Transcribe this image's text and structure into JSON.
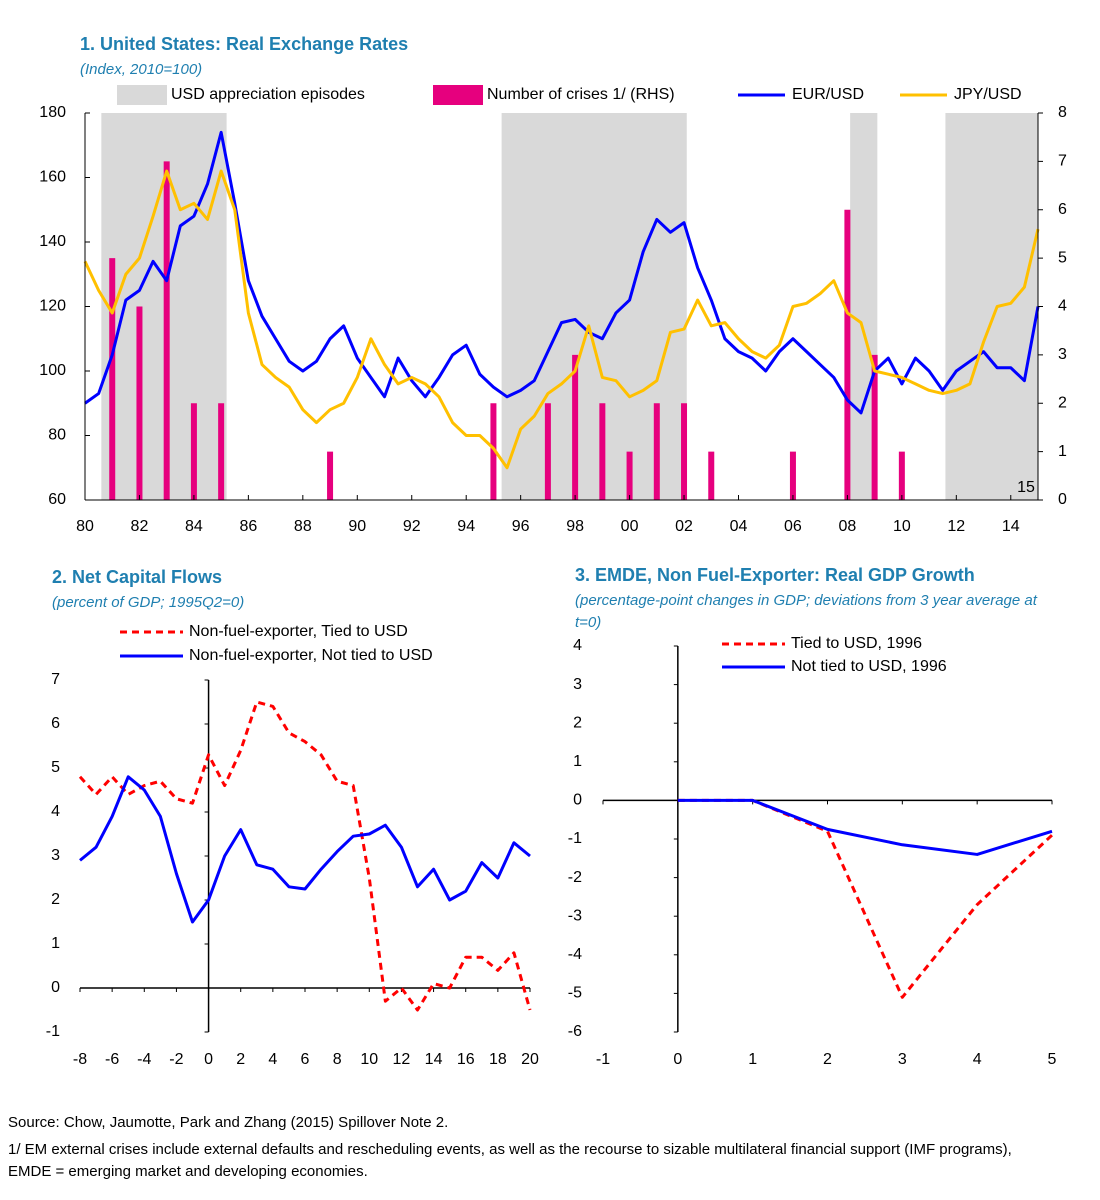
{
  "chart_data": [
    {
      "type": "line",
      "title": "1. United States: Real Exchange Rates",
      "subtitle": "(Index, 2010=100)",
      "x": [
        1980,
        1980.5,
        1981,
        1981.5,
        1982,
        1982.5,
        1983,
        1983.5,
        1984,
        1984.5,
        1985,
        1985.5,
        1986,
        1986.5,
        1987,
        1987.5,
        1988,
        1988.5,
        1989,
        1989.5,
        1990,
        1990.5,
        1991,
        1991.5,
        1992,
        1992.5,
        1993,
        1993.5,
        1994,
        1994.5,
        1995,
        1995.5,
        1996,
        1996.5,
        1997,
        1997.5,
        1998,
        1998.5,
        1999,
        1999.5,
        2000,
        2000.5,
        2001,
        2001.5,
        2002,
        2002.5,
        2003,
        2003.5,
        2004,
        2004.5,
        2005,
        2005.5,
        2006,
        2006.5,
        2007,
        2007.5,
        2008,
        2008.5,
        2009,
        2009.5,
        2010,
        2010.5,
        2011,
        2011.5,
        2012,
        2012.5,
        2013,
        2013.5,
        2014,
        2014.5,
        2015
      ],
      "shaded": {
        "name": "USD appreciation episodes",
        "color": "#d9d9d9",
        "ranges": [
          [
            1980.6,
            1985.2
          ],
          [
            1995.3,
            2002.1
          ],
          [
            2008.1,
            2009.1
          ],
          [
            2011.6,
            2015
          ]
        ]
      },
      "bars": {
        "name": "Number of crises 1/ (RHS)",
        "color": "#e6007e",
        "axis": "y2",
        "x": [
          1981,
          1982,
          1983,
          1984,
          1985,
          1989,
          1995,
          1997,
          1998,
          1999,
          2000,
          2001,
          2002,
          2003,
          2006,
          2008,
          2009,
          2010
        ],
        "values": [
          5,
          4,
          7,
          2,
          2,
          1,
          2,
          2,
          3,
          2,
          1,
          2,
          2,
          1,
          1,
          6,
          3,
          1
        ]
      },
      "series": [
        {
          "name": "EUR/USD",
          "color": "#0000ff",
          "values": [
            90,
            93,
            105,
            122,
            125,
            134,
            128,
            145,
            148,
            158,
            174,
            152,
            128,
            117,
            110,
            103,
            100,
            103,
            110,
            114,
            104,
            98,
            92,
            104,
            97,
            92,
            98,
            105,
            108,
            99,
            95,
            92,
            94,
            97,
            106,
            115,
            116,
            112,
            110,
            118,
            122,
            137,
            147,
            143,
            146,
            132,
            122,
            110,
            106,
            104,
            100,
            106,
            110,
            106,
            102,
            98,
            91,
            87,
            100,
            104,
            96,
            104,
            100,
            94,
            100,
            103,
            106,
            101,
            101,
            97,
            120
          ]
        },
        {
          "name": "JPY/USD",
          "color": "#ffc000",
          "values": [
            134,
            125,
            118,
            130,
            135,
            148,
            162,
            150,
            152,
            147,
            162,
            150,
            118,
            102,
            98,
            95,
            88,
            84,
            88,
            90,
            98,
            110,
            102,
            96,
            98,
            96,
            92,
            84,
            80,
            80,
            76,
            70,
            82,
            86,
            93,
            96,
            100,
            114,
            98,
            97,
            92,
            94,
            97,
            112,
            113,
            122,
            114,
            115,
            110,
            106,
            104,
            108,
            120,
            121,
            124,
            128,
            118,
            115,
            100,
            99,
            98,
            96,
            94,
            93,
            94,
            96,
            109,
            120,
            121,
            126,
            144
          ]
        }
      ],
      "xlim": [
        1980,
        2015
      ],
      "xticks": [
        {
          "value": 1980,
          "label": "80"
        },
        {
          "value": 1982,
          "label": "82"
        },
        {
          "value": 1984,
          "label": "84"
        },
        {
          "value": 1986,
          "label": "86"
        },
        {
          "value": 1988,
          "label": "88"
        },
        {
          "value": 1990,
          "label": "90"
        },
        {
          "value": 1992,
          "label": "92"
        },
        {
          "value": 1994,
          "label": "94"
        },
        {
          "value": 1996,
          "label": "96"
        },
        {
          "value": 1998,
          "label": "98"
        },
        {
          "value": 2000,
          "label": "00"
        },
        {
          "value": 2002,
          "label": "02"
        },
        {
          "value": 2004,
          "label": "04"
        },
        {
          "value": 2006,
          "label": "06"
        },
        {
          "value": 2008,
          "label": "08"
        },
        {
          "value": 2010,
          "label": "10"
        },
        {
          "value": 2012,
          "label": "12"
        },
        {
          "value": 2014,
          "label": "14"
        }
      ],
      "ylim": [
        60,
        180
      ],
      "yticks": [
        60,
        80,
        100,
        120,
        140,
        160,
        180
      ],
      "y2lim": [
        0,
        8
      ],
      "y2ticks": [
        0,
        1,
        2,
        3,
        4,
        5,
        6,
        7,
        8
      ],
      "annotation": "15"
    },
    {
      "type": "line",
      "title": "2. Net Capital Flows",
      "subtitle": "(percent of GDP; 1995Q2=0)",
      "x": [
        -8,
        -7,
        -6,
        -5,
        -4,
        -3,
        -2,
        -1,
        0,
        1,
        2,
        3,
        4,
        5,
        6,
        7,
        8,
        9,
        10,
        11,
        12,
        13,
        14,
        15,
        16,
        17,
        18,
        19,
        20
      ],
      "series": [
        {
          "name": "Non-fuel-exporter, Tied to USD",
          "color": "#ff0000",
          "dashed": true,
          "values": [
            4.8,
            4.4,
            4.8,
            4.4,
            4.6,
            4.7,
            4.3,
            4.2,
            5.3,
            4.6,
            5.4,
            6.5,
            6.4,
            5.8,
            5.6,
            5.3,
            4.7,
            4.6,
            2.5,
            -0.3,
            0.0,
            -0.5,
            0.1,
            0.0,
            0.7,
            0.7,
            0.4,
            0.8,
            -0.5
          ]
        },
        {
          "name": "Non-fuel-exporter, Not tied to USD",
          "color": "#0000ff",
          "values": [
            2.9,
            3.2,
            3.9,
            4.8,
            4.5,
            3.9,
            2.6,
            1.5,
            2.0,
            3.0,
            3.6,
            2.8,
            2.7,
            2.3,
            2.25,
            2.7,
            3.1,
            3.45,
            3.5,
            3.7,
            3.2,
            2.3,
            2.7,
            2.0,
            2.2,
            2.85,
            2.5,
            3.3,
            3.0
          ]
        }
      ],
      "xlim": [
        -8,
        20
      ],
      "xticks": [
        -8,
        -6,
        -4,
        -2,
        0,
        2,
        4,
        6,
        8,
        10,
        12,
        14,
        16,
        18,
        20
      ],
      "ylim": [
        -1,
        7
      ],
      "yticks": [
        -1,
        0,
        1,
        2,
        3,
        4,
        5,
        6,
        7
      ]
    },
    {
      "type": "line",
      "title": "3. EMDE, Non Fuel-Exporter: Real GDP Growth",
      "subtitle": "(percentage-point changes in GDP; deviations from 3 year average at t=0)",
      "x": [
        0,
        1,
        2,
        3,
        4,
        5
      ],
      "series": [
        {
          "name": "Tied to USD, 1996",
          "color": "#ff0000",
          "dashed": true,
          "values": [
            0,
            0,
            -0.8,
            -5.1,
            -2.7,
            -0.9
          ]
        },
        {
          "name": "Not tied to USD, 1996",
          "color": "#0000ff",
          "values": [
            0,
            0,
            -0.75,
            -1.15,
            -1.4,
            -0.8
          ]
        }
      ],
      "xlim": [
        -1,
        5
      ],
      "xticks": [
        -1,
        0,
        1,
        2,
        3,
        4,
        5
      ],
      "ylim": [
        -6,
        4
      ],
      "yticks": [
        -6,
        -5,
        -4,
        -3,
        -2,
        -1,
        0,
        1,
        2,
        3,
        4
      ]
    }
  ],
  "notes": {
    "source": "Source: Chow, Jaumotte, Park and Zhang (2015) Spillover Note 2.",
    "footnote": "1/ EM external crises include external defaults and rescheduling events, as well as the recourse to sizable multilateral financial support (IMF programs), EMDE = emerging market and developing economies."
  }
}
